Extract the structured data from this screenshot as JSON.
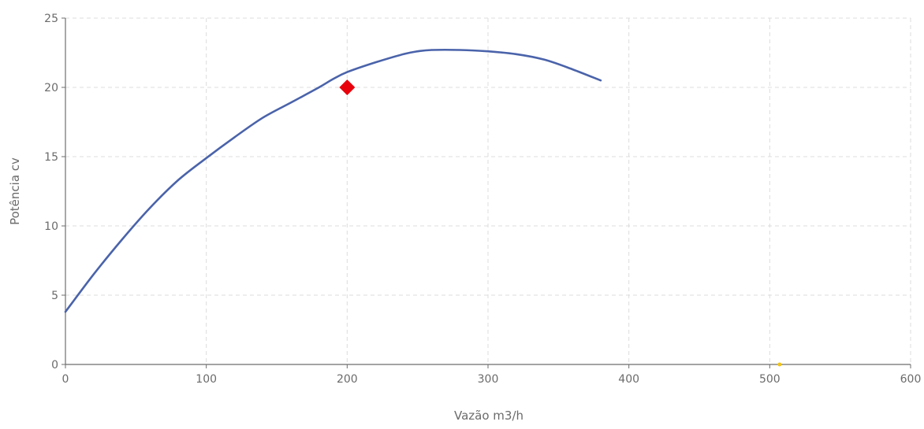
{
  "chart_data": {
    "type": "line",
    "xlabel": "Vazão  m3/h",
    "ylabel": "Potência  cv",
    "xlim": [
      0,
      600
    ],
    "ylim": [
      0,
      25
    ],
    "x_ticks": [
      0,
      100,
      200,
      300,
      400,
      500,
      600
    ],
    "y_ticks": [
      0,
      5,
      10,
      15,
      20,
      25
    ],
    "grid": true,
    "series": [
      {
        "type": "line",
        "color": "#4a63aa",
        "points": [
          [
            0,
            3.8
          ],
          [
            20,
            6.5
          ],
          [
            40,
            9.0
          ],
          [
            60,
            11.3
          ],
          [
            80,
            13.3
          ],
          [
            100,
            14.9
          ],
          [
            120,
            16.4
          ],
          [
            140,
            17.8
          ],
          [
            160,
            18.9
          ],
          [
            180,
            20.0
          ],
          [
            190,
            20.6
          ],
          [
            200,
            21.1
          ],
          [
            220,
            21.8
          ],
          [
            240,
            22.4
          ],
          [
            250,
            22.6
          ],
          [
            260,
            22.7
          ],
          [
            280,
            22.7
          ],
          [
            300,
            22.6
          ],
          [
            320,
            22.4
          ],
          [
            340,
            22.0
          ],
          [
            360,
            21.3
          ],
          [
            380,
            20.5
          ]
        ]
      },
      {
        "type": "scatter",
        "marker": "diamond",
        "color": "#e8000b",
        "points": [
          [
            200,
            20.0
          ]
        ]
      },
      {
        "type": "scatter",
        "marker": "dot",
        "color": "#f0c419",
        "points": [
          [
            507,
            0
          ]
        ]
      }
    ]
  }
}
